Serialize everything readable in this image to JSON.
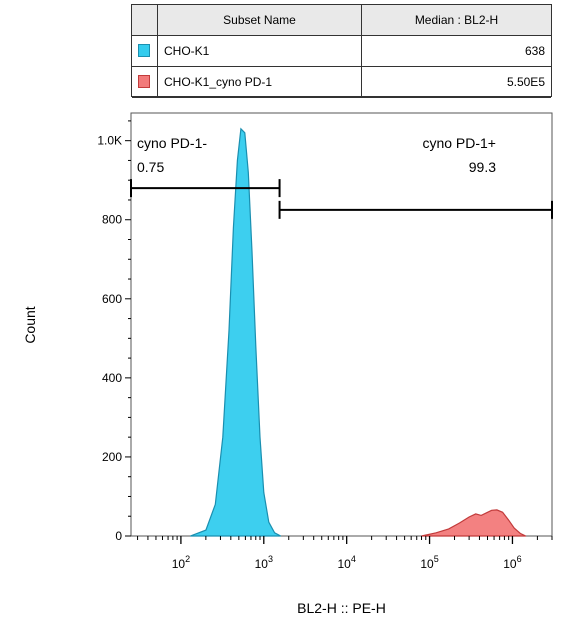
{
  "legend": {
    "headers": [
      "Subset Name",
      "Median : BL2-H"
    ],
    "rows": [
      {
        "name": "CHO-K1",
        "value": "638",
        "fill": "#33ccee",
        "stroke": "#1a8fb0"
      },
      {
        "name": "CHO-K1_cyno PD-1",
        "value": "5.50E5",
        "fill": "#f27a7a",
        "stroke": "#c23b3b"
      }
    ]
  },
  "chart_data": {
    "type": "area",
    "xlabel": "BL2-H :: PE-H",
    "ylabel": "Count",
    "xscale": "log",
    "xlim": [
      25,
      3000000
    ],
    "ylim": [
      0,
      1070
    ],
    "x_ticks": [
      {
        "value": 100,
        "base": "10",
        "exp": "2"
      },
      {
        "value": 1000,
        "base": "10",
        "exp": "3"
      },
      {
        "value": 10000,
        "base": "10",
        "exp": "4"
      },
      {
        "value": 100000,
        "base": "10",
        "exp": "5"
      },
      {
        "value": 1000000,
        "base": "10",
        "exp": "6"
      }
    ],
    "y_ticks": [
      {
        "value": 0,
        "label": "0"
      },
      {
        "value": 200,
        "label": "200"
      },
      {
        "value": 400,
        "label": "400"
      },
      {
        "value": 600,
        "label": "600"
      },
      {
        "value": 800,
        "label": "800"
      },
      {
        "value": 1000,
        "label": "1.0K"
      }
    ],
    "series": [
      {
        "name": "CHO-K1",
        "fill": "#33ccee",
        "stroke": "#1a8fb0",
        "points": [
          [
            130,
            0
          ],
          [
            200,
            15
          ],
          [
            260,
            80
          ],
          [
            320,
            250
          ],
          [
            380,
            520
          ],
          [
            430,
            780
          ],
          [
            480,
            950
          ],
          [
            530,
            1030
          ],
          [
            590,
            1020
          ],
          [
            650,
            920
          ],
          [
            720,
            720
          ],
          [
            800,
            480
          ],
          [
            900,
            250
          ],
          [
            1000,
            110
          ],
          [
            1150,
            35
          ],
          [
            1350,
            8
          ],
          [
            1600,
            0
          ]
        ]
      },
      {
        "name": "CHO-K1_cyno PD-1",
        "fill": "#f27a7a",
        "stroke": "#c23b3b",
        "points": [
          [
            80000,
            0
          ],
          [
            120000,
            8
          ],
          [
            170000,
            18
          ],
          [
            230000,
            33
          ],
          [
            300000,
            48
          ],
          [
            360000,
            56
          ],
          [
            420000,
            52
          ],
          [
            480000,
            58
          ],
          [
            560000,
            65
          ],
          [
            650000,
            66
          ],
          [
            760000,
            60
          ],
          [
            900000,
            40
          ],
          [
            1050000,
            20
          ],
          [
            1250000,
            6
          ],
          [
            1450000,
            0
          ]
        ]
      }
    ],
    "gates": [
      {
        "name": "cyno PD-1-",
        "value": "0.75",
        "x1": 25,
        "x2": 1550,
        "y": 880
      },
      {
        "name": "cyno PD-1+",
        "value": "99.3",
        "x1": 1550,
        "x2": 3000000,
        "y": 825
      }
    ]
  }
}
